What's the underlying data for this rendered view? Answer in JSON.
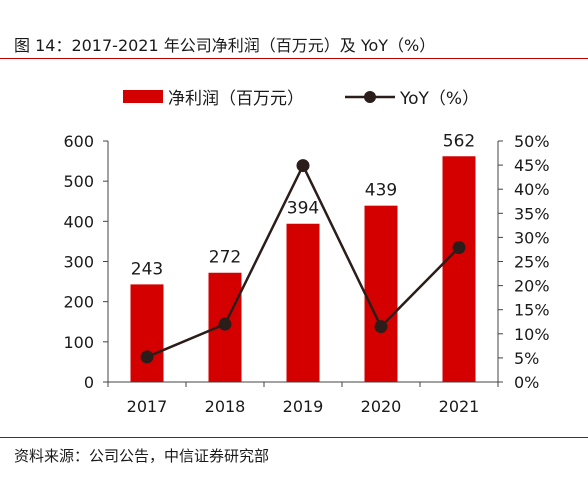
{
  "figure": {
    "title": "图 14：2017-2021 年公司净利润（百万元）及 YoY（%）",
    "source": "资料来源：公司公告，中信证券研究部"
  },
  "chart_data": {
    "type": "bar",
    "categories": [
      "2017",
      "2018",
      "2019",
      "2020",
      "2021"
    ],
    "series": [
      {
        "name": "净利润（百万元）",
        "type": "bar",
        "axis": "left",
        "values": [
          243,
          272,
          394,
          439,
          562
        ],
        "color": "#d40000"
      },
      {
        "name": "YoY（%）",
        "type": "line",
        "axis": "right",
        "values": [
          5.2,
          12.0,
          44.9,
          11.5,
          27.9
        ],
        "color": "#2b1d1a"
      }
    ],
    "ylim": [
      0,
      600
    ],
    "y_ticks": [
      "0",
      "100",
      "200",
      "300",
      "400",
      "500",
      "600"
    ],
    "y2lim": [
      0,
      50
    ],
    "y2_ticks": [
      "0%",
      "5%",
      "10%",
      "15%",
      "20%",
      "25%",
      "30%",
      "35%",
      "40%",
      "45%",
      "50%"
    ],
    "data_labels": [
      "243",
      "272",
      "394",
      "439",
      "562"
    ],
    "grid": false,
    "legend": "top"
  }
}
